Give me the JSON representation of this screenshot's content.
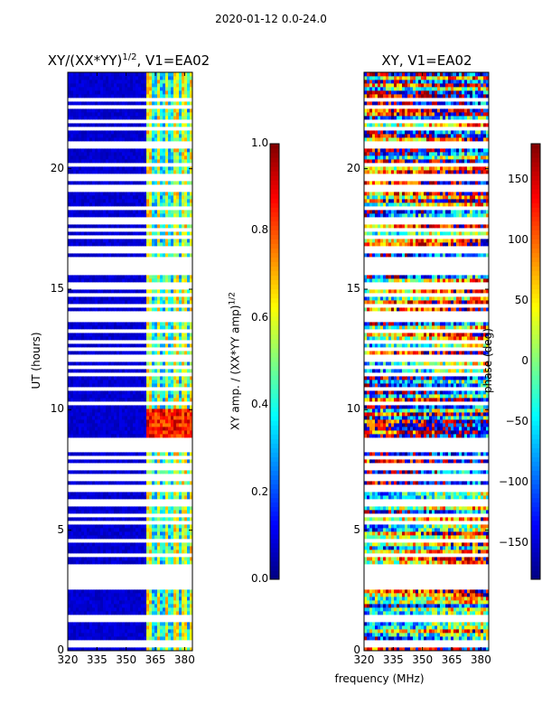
{
  "figure": {
    "suptitle": "2020-01-12 0.0-24.0",
    "xlabel": "frequency (MHz)",
    "ylabel": "UT (hours)"
  },
  "chart_data": [
    {
      "type": "heatmap",
      "title": "XY/(XX*YY)",
      "title_exponent": "1/2",
      "title_suffix": ", V1=EA02",
      "xlabel": "frequency (MHz)",
      "ylabel": "UT (hours)",
      "xlim": [
        320,
        384
      ],
      "ylim": [
        0,
        24
      ],
      "xticks": [
        320,
        335,
        350,
        365,
        380
      ],
      "yticks": [
        0,
        5,
        10,
        15,
        20
      ],
      "colorbar": {
        "label": "XY amp. / (XX*YY amp)",
        "label_exponent": "1/2",
        "range": [
          0.0,
          1.0
        ],
        "ticks": [
          "0.0",
          "0.2",
          "0.4",
          "0.6",
          "0.8",
          "1.0"
        ],
        "tick_values": [
          0.0,
          0.2,
          0.4,
          0.6,
          0.8,
          1.0
        ]
      },
      "description_values": {
        "low_band_level": 0.05,
        "high_band_start_mhz": 361,
        "high_band_level_range": [
          0.3,
          0.9
        ],
        "peak_time_range_hours": [
          8.5,
          10.0
        ]
      }
    },
    {
      "type": "heatmap",
      "title": "XY, V1=EA02",
      "xlabel": "frequency (MHz)",
      "ylabel": "",
      "xlim": [
        320,
        384
      ],
      "ylim": [
        0,
        24
      ],
      "xticks": [
        320,
        335,
        350,
        365,
        380
      ],
      "yticks": [
        0,
        5,
        10,
        15,
        20
      ],
      "colorbar": {
        "label": "phase (deg)",
        "range": [
          -180,
          180
        ],
        "ticks": [
          "150",
          "100",
          "50",
          "0",
          "−50",
          "−100",
          "−150"
        ],
        "tick_values": [
          150,
          100,
          50,
          0,
          -50,
          -100,
          -150
        ]
      }
    }
  ],
  "flagged_gaps_hours": [
    0.2,
    0.4,
    1.3,
    1.45,
    2.7,
    2.9,
    3.1,
    3.3,
    3.45,
    4.0,
    4.55,
    5.3,
    5.65,
    6.15,
    6.7,
    6.85,
    7.2,
    7.65,
    8.05,
    8.4,
    8.55,
    8.75,
    10.3,
    10.85,
    11.5,
    11.75,
    12.15,
    12.5,
    12.8,
    13.3,
    13.75,
    13.95,
    14.3,
    14.75,
    15.15,
    15.7,
    15.9,
    16.2,
    16.65,
    17.2,
    17.5,
    17.85,
    18.4,
    19.2,
    19.65,
    20.2,
    20.9,
    21.1,
    21.65,
    21.95,
    22.6,
    22.85
  ]
}
